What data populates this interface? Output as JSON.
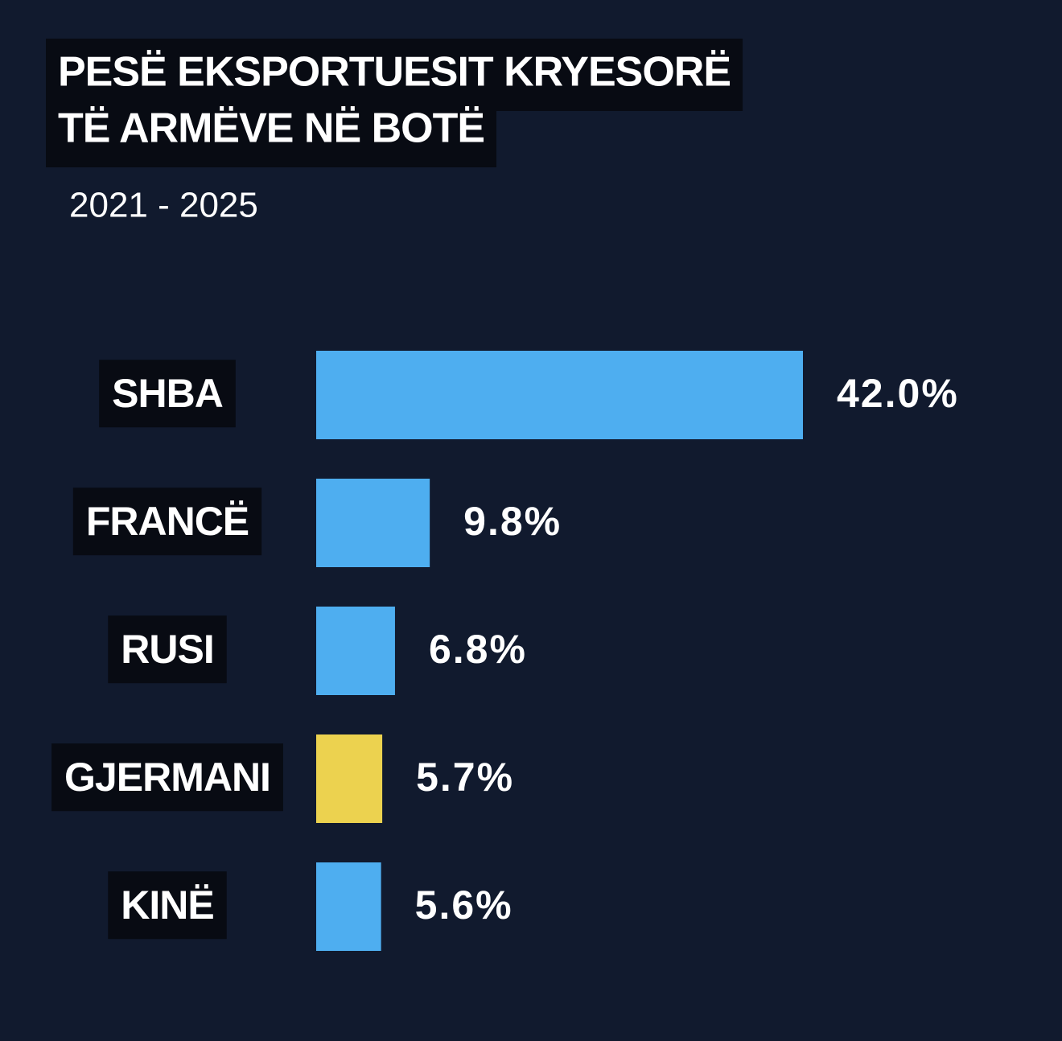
{
  "chart_data": {
    "type": "bar",
    "orientation": "horizontal",
    "title": [
      "PESË EKSPORTUESIT KRYESORË",
      "TË ARMËVE NË BOTË"
    ],
    "subtitle": "2021 - 2025",
    "categories": [
      "SHBA",
      "FRANCË",
      "RUSI",
      "GJERMANI",
      "KINË"
    ],
    "values": [
      42.0,
      9.8,
      6.8,
      5.7,
      5.6
    ],
    "value_labels": [
      "42.0%",
      "9.8%",
      "6.8%",
      "5.7%",
      "5.6%"
    ],
    "colors": [
      "#4eaef0",
      "#4eaef0",
      "#4eaef0",
      "#ecd24f",
      "#4eaef0"
    ],
    "xlim": [
      0,
      42
    ]
  }
}
